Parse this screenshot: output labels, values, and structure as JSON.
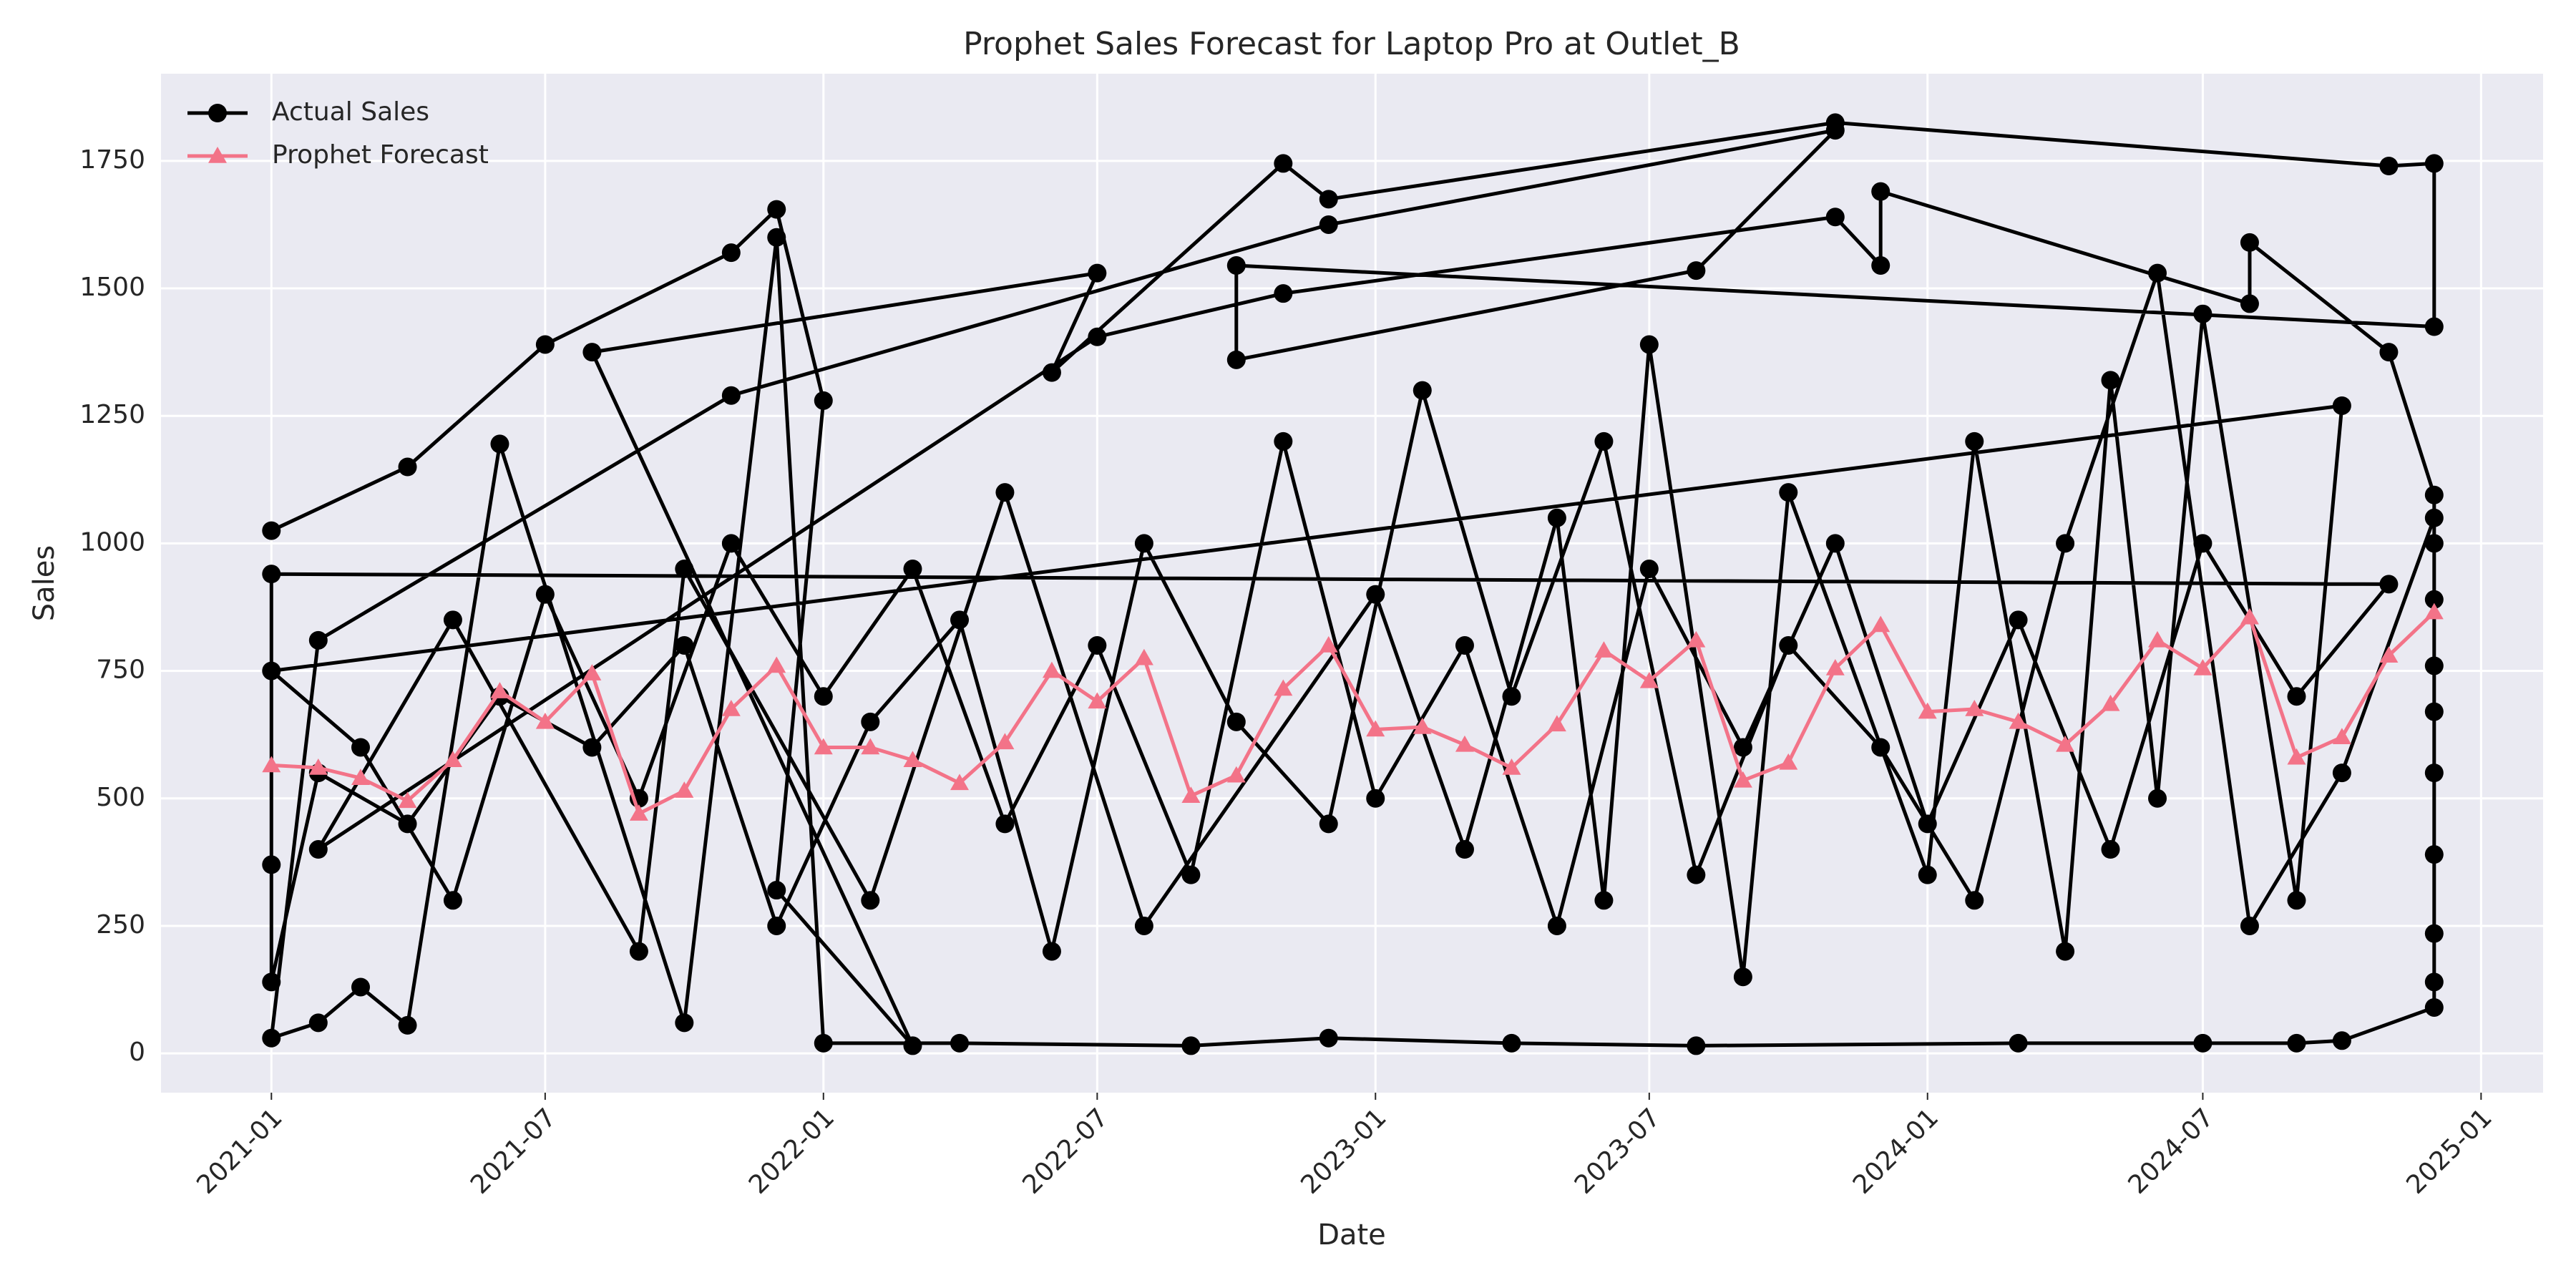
{
  "chart_data": {
    "type": "line",
    "title": "Prophet Sales Forecast for Laptop Pro at Outlet_B",
    "x_label": "Date",
    "y_label": "Sales",
    "xlim": [
      "2020-10-20",
      "2025-02-11"
    ],
    "ylim": [
      -77,
      1921
    ],
    "xticks": [
      {
        "value": "2021-01-01",
        "label": "2021-01"
      },
      {
        "value": "2021-07-01",
        "label": "2021-07"
      },
      {
        "value": "2022-01-01",
        "label": "2022-01"
      },
      {
        "value": "2022-07-01",
        "label": "2022-07"
      },
      {
        "value": "2023-01-01",
        "label": "2023-01"
      },
      {
        "value": "2023-07-01",
        "label": "2023-07"
      },
      {
        "value": "2024-01-01",
        "label": "2024-01"
      },
      {
        "value": "2024-07-01",
        "label": "2024-07"
      },
      {
        "value": "2025-01-01",
        "label": "2025-01"
      }
    ],
    "yticks": [
      0,
      250,
      500,
      750,
      1000,
      1250,
      1500,
      1750
    ],
    "grid": true,
    "legend": "upper left",
    "series": [
      {
        "name": "Actual Sales",
        "color": "#000000",
        "marker": "circle",
        "x": [
          "2021-01-01",
          "2021-04-01",
          "2021-07-01",
          "2021-11-01",
          "2021-12-01",
          "2022-01-01",
          "2021-12-01",
          "2022-03-01",
          "2021-08-01",
          "2022-07-01",
          "2022-06-01",
          "2022-11-01",
          "2022-12-01",
          "2023-11-01",
          "2024-11-01",
          "2024-12-01",
          "2024-12-01",
          "2022-10-01",
          "2022-10-01",
          "2023-08-01",
          "2023-11-01",
          "2022-12-01",
          "2021-11-01",
          "2021-02-01",
          "2021-01-01",
          "2021-02-01",
          "2021-03-01",
          "2021-04-01",
          "2021-06-01",
          "2021-10-01",
          "2021-12-01",
          "2022-01-01",
          "2022-04-01",
          "2022-09-01",
          "2022-12-01",
          "2023-04-01",
          "2023-08-01",
          "2024-03-01",
          "2024-07-01",
          "2024-09-01",
          "2024-10-01",
          "2024-12-01",
          "2024-12-01",
          "2024-12-01",
          "2024-12-01",
          "2024-12-01",
          "2024-12-01",
          "2024-12-01",
          "2024-12-01",
          "2024-12-01",
          "2024-11-01",
          "2024-08-01",
          "2024-08-01",
          "2023-12-01",
          "2023-12-01",
          "2023-11-01",
          "2022-11-01",
          "2022-07-01",
          "2021-02-01",
          "2021-05-01",
          "2021-09-01",
          "2021-10-01",
          "2022-02-01",
          "2022-05-01",
          "2022-08-01",
          "2023-01-01",
          "2023-03-01",
          "2023-05-01",
          "2023-06-01",
          "2023-07-01",
          "2023-09-01",
          "2023-10-01",
          "2024-01-01",
          "2024-02-01",
          "2024-04-01",
          "2024-05-01",
          "2024-06-01",
          "2024-07-01",
          "2024-09-01",
          "2024-10-01",
          "2021-01-01",
          "2021-03-01",
          "2021-05-01",
          "2021-07-01",
          "2021-09-01",
          "2021-11-01",
          "2022-01-01",
          "2022-03-01",
          "2022-05-01",
          "2022-07-01",
          "2022-09-01",
          "2022-11-01",
          "2023-01-01",
          "2023-03-01",
          "2023-05-01",
          "2023-07-01",
          "2023-09-01",
          "2023-11-01",
          "2024-01-01",
          "2024-03-01",
          "2024-05-01",
          "2024-07-01",
          "2024-09-01",
          "2024-11-01",
          "2021-01-01",
          "2021-01-01",
          "2021-01-01",
          "2021-02-01",
          "2021-04-01",
          "2021-06-01",
          "2021-08-01",
          "2021-10-01",
          "2021-12-01",
          "2022-02-01",
          "2022-04-01",
          "2022-06-01",
          "2022-08-01",
          "2022-10-01",
          "2022-12-01",
          "2023-02-01",
          "2023-04-01",
          "2023-06-01",
          "2023-08-01",
          "2023-10-01",
          "2023-12-01",
          "2024-02-01",
          "2024-04-01",
          "2024-06-01",
          "2024-08-01",
          "2024-10-01",
          "2024-12-01",
          "2024-12-01"
        ],
        "values": [
          1025,
          1150,
          1390,
          1570,
          1655,
          1280,
          320,
          15,
          1375,
          1530,
          1335,
          1745,
          1675,
          1825,
          1740,
          1745,
          1425,
          1545,
          1360,
          1535,
          1810,
          1625,
          1290,
          810,
          30,
          60,
          130,
          55,
          1195,
          60,
          1600,
          20,
          20,
          15,
          30,
          20,
          15,
          20,
          20,
          20,
          25,
          90,
          140,
          235,
          390,
          550,
          670,
          890,
          1000,
          1095,
          1375,
          1590,
          1470,
          1690,
          1545,
          1640,
          1490,
          1405,
          400,
          850,
          200,
          950,
          300,
          1100,
          250,
          900,
          400,
          1050,
          300,
          1390,
          150,
          1100,
          350,
          1200,
          200,
          1320,
          500,
          1450,
          300,
          1270,
          750,
          600,
          300,
          900,
          500,
          1000,
          700,
          950,
          450,
          800,
          350,
          1200,
          500,
          800,
          250,
          950,
          600,
          1000,
          450,
          850,
          400,
          1000,
          700,
          920,
          940,
          370,
          140,
          550,
          450,
          700,
          600,
          800,
          250,
          650,
          850,
          200,
          1000,
          650,
          450,
          1300,
          700,
          1200,
          350,
          800,
          600,
          300,
          1000,
          1530,
          250,
          550,
          1050,
          760
        ]
      },
      {
        "name": "Prophet Forecast",
        "color": "#f37388",
        "marker": "triangle",
        "x": [
          "2021-01-01",
          "2021-02-01",
          "2021-03-01",
          "2021-04-01",
          "2021-05-01",
          "2021-06-01",
          "2021-07-01",
          "2021-08-01",
          "2021-09-01",
          "2021-10-01",
          "2021-11-01",
          "2021-12-01",
          "2022-01-01",
          "2022-02-01",
          "2022-03-01",
          "2022-04-01",
          "2022-05-01",
          "2022-06-01",
          "2022-07-01",
          "2022-08-01",
          "2022-09-01",
          "2022-10-01",
          "2022-11-01",
          "2022-12-01",
          "2023-01-01",
          "2023-02-01",
          "2023-03-01",
          "2023-04-01",
          "2023-05-01",
          "2023-06-01",
          "2023-07-01",
          "2023-08-01",
          "2023-09-01",
          "2023-10-01",
          "2023-11-01",
          "2023-12-01",
          "2024-01-01",
          "2024-02-01",
          "2024-03-01",
          "2024-04-01",
          "2024-05-01",
          "2024-06-01",
          "2024-07-01",
          "2024-08-01",
          "2024-09-01",
          "2024-10-01",
          "2024-11-01",
          "2024-12-01"
        ],
        "values": [
          565,
          560,
          540,
          495,
          575,
          710,
          650,
          745,
          470,
          515,
          675,
          760,
          600,
          600,
          575,
          530,
          610,
          750,
          690,
          775,
          505,
          545,
          715,
          800,
          635,
          640,
          605,
          560,
          645,
          790,
          730,
          810,
          535,
          570,
          755,
          840,
          670,
          675,
          650,
          605,
          685,
          810,
          755,
          855,
          580,
          620,
          780,
          865
        ]
      }
    ]
  }
}
